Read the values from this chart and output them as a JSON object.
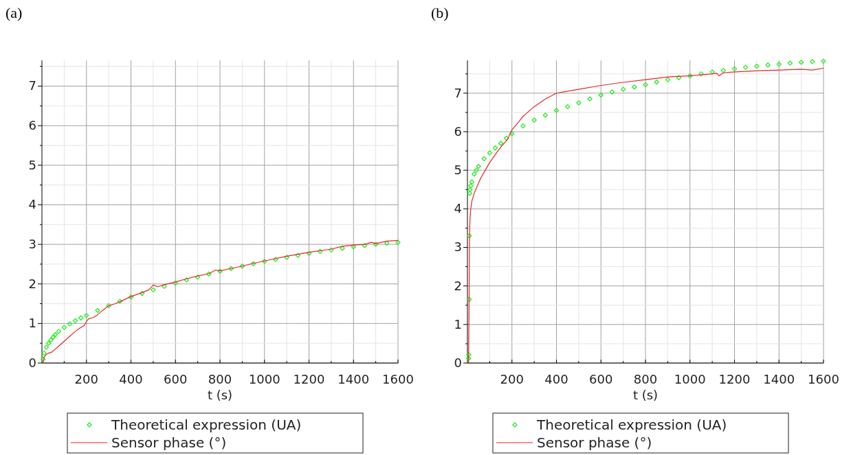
{
  "chart_data": [
    {
      "type": "line",
      "title": "(a)",
      "xlabel": "t (s)",
      "xlim": [
        0,
        1600
      ],
      "ylim": [
        0,
        7.65
      ],
      "xticks": [
        {
          "value": 100,
          "label": null
        },
        200,
        {
          "value": 300,
          "label": null
        },
        400,
        {
          "value": 500,
          "label": null
        },
        600,
        {
          "value": 700,
          "label": null
        },
        800,
        {
          "value": 900,
          "label": null
        },
        1000,
        {
          "value": 1100,
          "label": null
        },
        1200,
        {
          "value": 1300,
          "label": null
        },
        1400,
        {
          "value": 1500,
          "label": null
        },
        1600
      ],
      "yticks": [
        0,
        {
          "value": 0.5,
          "label": null
        },
        1,
        {
          "value": 1.5,
          "label": null
        },
        2,
        {
          "value": 2.5,
          "label": null
        },
        3,
        {
          "value": 3.5,
          "label": null
        },
        4,
        {
          "value": 4.5,
          "label": null
        },
        5,
        {
          "value": 5.5,
          "label": null
        },
        6,
        {
          "value": 6.5,
          "label": null
        },
        7,
        {
          "value": 7.5,
          "label": null
        }
      ],
      "grid": true,
      "legend": "bottom",
      "series": [
        {
          "name": "Theoretical expression (UA)",
          "type": "scatter",
          "marker": "diamond",
          "color": "#22ee22",
          "x": [
            5,
            10,
            20,
            30,
            40,
            50,
            60,
            75,
            100,
            125,
            150,
            175,
            200,
            250,
            300,
            350,
            400,
            450,
            500,
            550,
            600,
            650,
            700,
            750,
            800,
            850,
            900,
            950,
            1000,
            1050,
            1100,
            1150,
            1200,
            1250,
            1300,
            1350,
            1400,
            1450,
            1500,
            1550,
            1600
          ],
          "values": [
            0.1,
            0.25,
            0.4,
            0.5,
            0.58,
            0.65,
            0.72,
            0.8,
            0.9,
            0.99,
            1.07,
            1.14,
            1.2,
            1.33,
            1.45,
            1.56,
            1.67,
            1.76,
            1.85,
            1.94,
            2.02,
            2.1,
            2.17,
            2.25,
            2.32,
            2.39,
            2.45,
            2.51,
            2.57,
            2.62,
            2.67,
            2.72,
            2.77,
            2.82,
            2.86,
            2.9,
            2.94,
            2.97,
            3.0,
            3.03,
            3.05
          ]
        },
        {
          "name": "Sensor phase (°)",
          "marker": "none",
          "color": "#ee2222",
          "x": [
            5,
            10,
            20,
            30,
            45,
            60,
            80,
            100,
            120,
            150,
            170,
            190,
            200,
            210,
            230,
            250,
            270,
            300,
            330,
            350,
            400,
            450,
            480,
            500,
            520,
            550,
            600,
            650,
            700,
            750,
            780,
            800,
            850,
            900,
            950,
            1000,
            1100,
            1200,
            1300,
            1350,
            1400,
            1450,
            1480,
            1500,
            1550,
            1600
          ],
          "values": [
            0,
            0.15,
            0.22,
            0.25,
            0.28,
            0.35,
            0.45,
            0.55,
            0.65,
            0.8,
            0.88,
            0.95,
            1.05,
            1.12,
            1.15,
            1.22,
            1.32,
            1.45,
            1.5,
            1.55,
            1.68,
            1.78,
            1.85,
            1.97,
            1.93,
            1.98,
            2.05,
            2.13,
            2.2,
            2.26,
            2.35,
            2.33,
            2.39,
            2.45,
            2.52,
            2.58,
            2.7,
            2.8,
            2.88,
            2.95,
            2.98,
            3.0,
            3.05,
            3.02,
            3.08,
            3.1
          ]
        }
      ]
    },
    {
      "type": "line",
      "title": "(b)",
      "xlabel": "t (s)",
      "xlim": [
        0,
        1600
      ],
      "ylim": [
        0,
        7.85
      ],
      "xticks": [
        {
          "value": 100,
          "label": null
        },
        200,
        {
          "value": 300,
          "label": null
        },
        400,
        {
          "value": 500,
          "label": null
        },
        600,
        {
          "value": 700,
          "label": null
        },
        800,
        {
          "value": 900,
          "label": null
        },
        1000,
        {
          "value": 1100,
          "label": null
        },
        1200,
        {
          "value": 1300,
          "label": null
        },
        1400,
        {
          "value": 1500,
          "label": null
        },
        1600
      ],
      "yticks": [
        0,
        {
          "value": 0.5,
          "label": null
        },
        1,
        {
          "value": 1.5,
          "label": null
        },
        2,
        {
          "value": 2.5,
          "label": null
        },
        3,
        {
          "value": 3.5,
          "label": null
        },
        4,
        {
          "value": 4.5,
          "label": null
        },
        5,
        {
          "value": 5.5,
          "label": null
        },
        6,
        {
          "value": 6.5,
          "label": null
        },
        7,
        {
          "value": 7.5,
          "label": null
        }
      ],
      "grid": true,
      "legend": "bottom",
      "series": [
        {
          "name": "Theoretical expression (UA)",
          "type": "scatter",
          "marker": "diamond",
          "color": "#22ee22",
          "x": [
            5,
            6,
            8,
            9,
            10,
            12,
            15,
            20,
            30,
            40,
            50,
            75,
            100,
            125,
            150,
            175,
            200,
            250,
            300,
            350,
            400,
            450,
            500,
            550,
            600,
            650,
            700,
            750,
            800,
            850,
            900,
            950,
            1000,
            1050,
            1100,
            1150,
            1200,
            1250,
            1300,
            1350,
            1400,
            1450,
            1500,
            1550,
            1600
          ],
          "values": [
            0.12,
            0.22,
            1.65,
            3.3,
            4.4,
            4.5,
            4.6,
            4.7,
            4.9,
            5.0,
            5.1,
            5.3,
            5.45,
            5.58,
            5.7,
            5.83,
            5.95,
            6.15,
            6.3,
            6.43,
            6.55,
            6.65,
            6.75,
            6.85,
            6.95,
            7.03,
            7.1,
            7.16,
            7.22,
            7.29,
            7.35,
            7.4,
            7.45,
            7.5,
            7.55,
            7.59,
            7.63,
            7.67,
            7.7,
            7.73,
            7.75,
            7.78,
            7.8,
            7.82,
            7.83
          ]
        },
        {
          "name": "Sensor phase (°)",
          "marker": "none",
          "color": "#ee2222",
          "x": [
            2,
            5,
            7,
            8,
            10,
            12,
            15,
            20,
            30,
            45,
            60,
            80,
            100,
            130,
            150,
            180,
            200,
            230,
            250,
            300,
            350,
            400,
            450,
            500,
            600,
            700,
            800,
            900,
            1000,
            1100,
            1120,
            1130,
            1150,
            1200,
            1300,
            1400,
            1500,
            1550,
            1600
          ],
          "values": [
            0,
            0,
            1.2,
            2.0,
            3.5,
            3.8,
            4.0,
            4.2,
            4.4,
            4.6,
            4.8,
            5.0,
            5.2,
            5.45,
            5.6,
            5.8,
            6.05,
            6.25,
            6.4,
            6.65,
            6.85,
            7.0,
            7.05,
            7.1,
            7.2,
            7.28,
            7.35,
            7.42,
            7.45,
            7.5,
            7.52,
            7.45,
            7.53,
            7.55,
            7.58,
            7.6,
            7.62,
            7.6,
            7.65
          ]
        }
      ]
    }
  ]
}
